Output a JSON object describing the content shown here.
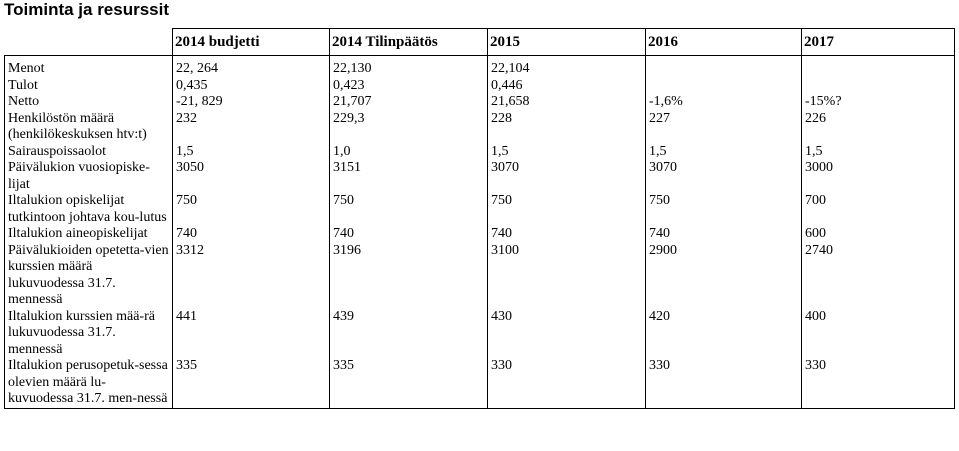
{
  "title": "Toiminta ja resurssit",
  "table": {
    "headers": [
      "",
      "2014 budjetti",
      "2014 Tilinpäätös",
      "2015",
      "2016",
      "2017"
    ],
    "rows": [
      {
        "label": "Menot",
        "values": [
          "22, 264",
          "22,130",
          "22,104",
          "",
          ""
        ]
      },
      {
        "label": "Tulot",
        "values": [
          "0,435",
          "0,423",
          "0,446",
          "",
          ""
        ]
      },
      {
        "label": "Netto",
        "values": [
          "-21, 829",
          "21,707",
          "21,658",
          "-1,6%",
          "-15%?"
        ]
      },
      {
        "label": "Henkilöstön määrä (henkilökeskuksen htv:t)",
        "values": [
          "232",
          "229,3",
          "228",
          "227",
          "226"
        ]
      },
      {
        "label": "Sairauspoissaolot",
        "values": [
          "1,5",
          "1,0",
          "1,5",
          "1,5",
          "1,5"
        ]
      },
      {
        "label": "Päivälukion vuosiopiske-lijat",
        "values": [
          "3050",
          "3151",
          "3070",
          "3070",
          "3000"
        ]
      },
      {
        "label": "Iltalukion opiskelijat tutkintoon johtava kou-lutus",
        "values": [
          "750",
          "750",
          "750",
          "750",
          "700"
        ]
      },
      {
        "label": "Iltalukion aineopiskelijat",
        "values": [
          "740",
          "740",
          "740",
          "740",
          "600"
        ]
      },
      {
        "label": "Päivälukioiden opetetta-vien kurssien määrä lukuvuodessa 31.7. mennessä",
        "values": [
          "3312",
          "3196",
          "3100",
          "2900",
          "2740"
        ]
      },
      {
        "label": "Iltalukion kurssien mää-rä lukuvuodessa 31.7. mennessä",
        "values": [
          "441",
          "439",
          "430",
          "420",
          "400"
        ]
      },
      {
        "label": "Iltalukion perusopetuk-sessa olevien määrä lu-kuvuodessa 31.7. men-nessä",
        "values": [
          "335",
          "335",
          "330",
          "330",
          "330"
        ]
      }
    ]
  }
}
